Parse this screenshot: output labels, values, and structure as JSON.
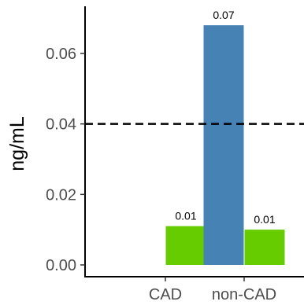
{
  "chart_data": {
    "type": "bar",
    "title": "",
    "xlabel": "",
    "ylabel": "ng/mL",
    "ylim": [
      0,
      0.072
    ],
    "yticks": [
      0,
      0.02,
      0.04,
      0.06
    ],
    "ytick_labels": [
      "0.00",
      "0.02",
      "0.04",
      "0.06"
    ],
    "categories": [
      "CAD",
      "non-CAD"
    ],
    "bars": [
      {
        "category": "CAD",
        "slot": 1,
        "value": 0.011,
        "label": "0.01",
        "color": "#66cc00"
      },
      {
        "category": "non-CAD",
        "slot": 0,
        "value": 0.068,
        "label": "0.07",
        "color": "#4682b4"
      },
      {
        "category": "non-CAD",
        "slot": 1,
        "value": 0.01,
        "label": "0.01",
        "color": "#66cc00"
      }
    ],
    "reference_line": {
      "value": 0.04,
      "style": "dashed",
      "color": "#000000"
    },
    "grid": false,
    "legend": "none"
  }
}
